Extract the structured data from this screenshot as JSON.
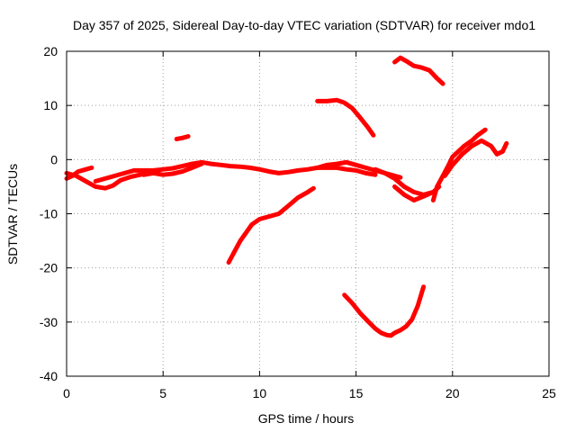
{
  "chart_data": {
    "type": "line",
    "title": "Day 357 of 2025, Sidereal Day-to-day VTEC variation (SDTVAR) for receiver mdo1",
    "xlabel": "GPS time / hours",
    "ylabel": "SDTVAR / TECUs",
    "xlim": [
      0,
      25
    ],
    "ylim": [
      -40,
      20
    ],
    "xticks": [
      0,
      5,
      10,
      15,
      20,
      25
    ],
    "yticks": [
      -40,
      -30,
      -20,
      -10,
      0,
      10,
      20
    ],
    "xtick_labels": [
      "0",
      "5",
      "10",
      "15",
      "20",
      "25"
    ],
    "ytick_labels": [
      "-40",
      "-30",
      "-20",
      "-10",
      "0",
      "10",
      "20"
    ],
    "grid": true,
    "color": "#ff0000",
    "series": [
      {
        "name": "segment-1",
        "x": [
          0.0,
          0.3,
          0.6,
          1.0,
          1.3
        ],
        "y": [
          -3.5,
          -3.0,
          -2.2,
          -1.8,
          -1.5
        ]
      },
      {
        "name": "segment-2",
        "x": [
          0.0,
          0.5,
          1.0,
          1.5,
          2.0,
          2.4,
          2.8,
          3.3,
          3.8,
          4.3
        ],
        "y": [
          -2.5,
          -3.0,
          -4.0,
          -5.0,
          -5.3,
          -4.8,
          -3.8,
          -3.2,
          -2.8,
          -2.5
        ]
      },
      {
        "name": "segment-3",
        "x": [
          1.5,
          2.0,
          2.5,
          3.0,
          3.5,
          4.0,
          4.5,
          5.0,
          5.5,
          6.0,
          6.5,
          7.0,
          7.5,
          8.0,
          8.5,
          9.0,
          9.5,
          10.0,
          10.5,
          11.0,
          11.5,
          12.0,
          12.5,
          13.0,
          13.5,
          14.0,
          14.5,
          15.0,
          15.5,
          16.0
        ],
        "y": [
          -4.0,
          -3.5,
          -3.0,
          -2.5,
          -2.0,
          -2.0,
          -2.0,
          -1.8,
          -1.6,
          -1.2,
          -0.8,
          -0.5,
          -0.8,
          -1.0,
          -1.2,
          -1.3,
          -1.5,
          -1.8,
          -2.2,
          -2.5,
          -2.3,
          -2.0,
          -1.8,
          -1.5,
          -1.5,
          -1.5,
          -1.8,
          -2.0,
          -2.5,
          -2.8
        ]
      },
      {
        "name": "segment-4",
        "x": [
          4.0,
          4.5,
          5.0,
          5.5,
          6.0,
          6.5,
          7.0
        ],
        "y": [
          -2.8,
          -2.5,
          -2.8,
          -2.6,
          -2.2,
          -1.5,
          -0.8
        ]
      },
      {
        "name": "segment-5",
        "x": [
          13.0,
          13.5,
          14.0,
          14.5,
          15.0,
          15.5,
          16.0,
          16.5,
          17.0,
          17.3
        ],
        "y": [
          -1.5,
          -1.0,
          -0.8,
          -0.5,
          -1.0,
          -1.5,
          -2.0,
          -2.5,
          -3.0,
          -3.3
        ]
      },
      {
        "name": "segment-6",
        "x": [
          16.0,
          16.5,
          17.0,
          17.5,
          18.0,
          18.5,
          19.0,
          19.3
        ],
        "y": [
          -1.8,
          -2.5,
          -3.5,
          -5.0,
          -6.0,
          -6.5,
          -6.0,
          -5.0
        ]
      },
      {
        "name": "segment-7",
        "x": [
          17.0,
          17.5,
          18.0,
          18.5,
          19.0
        ],
        "y": [
          -5.0,
          -6.5,
          -7.5,
          -6.8,
          -6.0
        ]
      },
      {
        "name": "segment-8",
        "x": [
          19.0,
          19.2,
          19.5,
          19.8,
          20.0,
          20.3,
          20.6,
          21.0,
          21.3,
          21.7
        ],
        "y": [
          -7.5,
          -5.0,
          -3.0,
          -1.0,
          0.5,
          1.5,
          2.5,
          3.5,
          4.5,
          5.5
        ]
      },
      {
        "name": "segment-9",
        "x": [
          19.6,
          20.0,
          20.5,
          21.0,
          21.5,
          22.0,
          22.3,
          22.6,
          22.8
        ],
        "y": [
          -3.0,
          -1.0,
          1.0,
          2.5,
          3.5,
          2.5,
          1.0,
          1.5,
          3.0
        ]
      },
      {
        "name": "segment-10",
        "x": [
          5.7,
          6.0,
          6.3
        ],
        "y": [
          3.8,
          4.0,
          4.3
        ]
      },
      {
        "name": "segment-11",
        "x": [
          8.4,
          8.7,
          9.0,
          9.3,
          9.6,
          10.0,
          10.5,
          11.0,
          11.5,
          12.0,
          12.5,
          12.8
        ],
        "y": [
          -19.0,
          -17.0,
          -15.0,
          -13.5,
          -12.0,
          -11.0,
          -10.5,
          -10.0,
          -8.5,
          -7.0,
          -6.0,
          -5.3
        ]
      },
      {
        "name": "segment-12",
        "x": [
          13.0,
          13.5,
          14.0,
          14.4,
          14.8,
          15.2,
          15.6,
          15.9
        ],
        "y": [
          10.8,
          10.8,
          11.0,
          10.5,
          9.5,
          7.8,
          6.0,
          4.5
        ]
      },
      {
        "name": "segment-13",
        "x": [
          17.0,
          17.3,
          17.6,
          18.0,
          18.4,
          18.8,
          19.2,
          19.5
        ],
        "y": [
          18.0,
          18.8,
          18.2,
          17.3,
          17.0,
          16.5,
          15.0,
          14.0
        ]
      },
      {
        "name": "segment-14",
        "x": [
          14.4,
          14.8,
          15.2,
          15.6,
          16.0,
          16.3,
          16.6,
          16.8,
          17.0,
          17.3,
          17.6,
          17.9,
          18.2,
          18.5
        ],
        "y": [
          -25.0,
          -26.5,
          -28.3,
          -29.8,
          -31.2,
          -32.0,
          -32.4,
          -32.5,
          -32.0,
          -31.5,
          -30.8,
          -29.5,
          -27.0,
          -23.5
        ]
      }
    ]
  }
}
